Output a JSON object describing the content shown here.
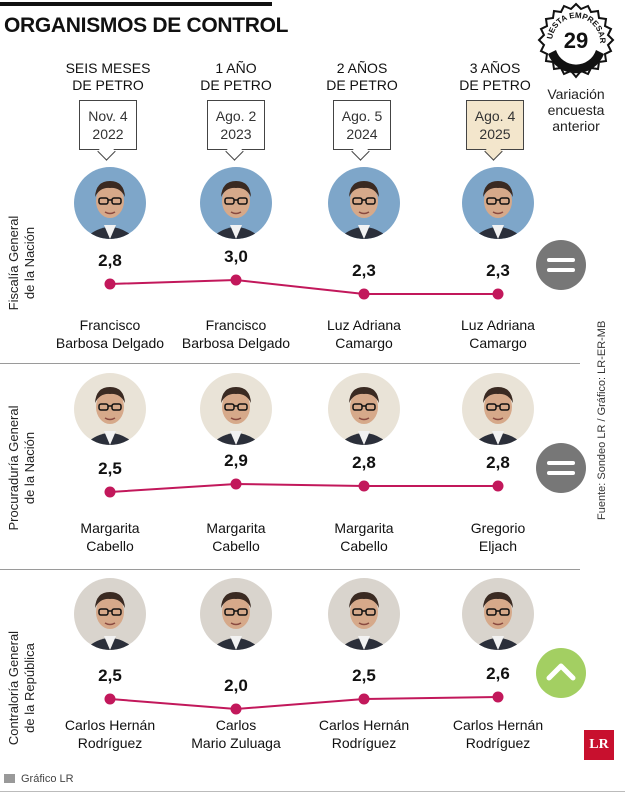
{
  "title": "ORGANISMOS DE CONTROL",
  "badge": {
    "line1": "ENCUESTA EMPRESARIAL",
    "number": "29"
  },
  "variation_label": [
    "Variación",
    "encuesta",
    "anterior"
  ],
  "periods": [
    {
      "line1": "SEIS MESES",
      "line2": "DE PETRO",
      "date1": "Nov. 4",
      "date2": "2022",
      "highlight": false
    },
    {
      "line1": "1 AÑO",
      "line2": "DE PETRO",
      "date1": "Ago. 2",
      "date2": "2023",
      "highlight": false
    },
    {
      "line1": "2 AÑOS",
      "line2": "DE PETRO",
      "date1": "Ago. 5",
      "date2": "2024",
      "highlight": false
    },
    {
      "line1": "3 AÑOS",
      "line2": "DE PETRO",
      "date1": "Ago. 4",
      "date2": "2025",
      "highlight": true
    }
  ],
  "chart_data": [
    {
      "type": "line",
      "label": "Fiscalía General de la Nación",
      "label_lines": [
        "Fiscalía General",
        "de la Nación"
      ],
      "values": [
        2.8,
        3.0,
        2.3,
        2.3
      ],
      "value_labels": [
        "2,8",
        "3,0",
        "2,3",
        "2,3"
      ],
      "names": [
        [
          "Francisco",
          "Barbosa Delgado"
        ],
        [
          "Francisco",
          "Barbosa Delgado"
        ],
        [
          "Luz Adriana",
          "Camargo"
        ],
        [
          "Luz Adriana",
          "Camargo"
        ]
      ],
      "trend": "equal"
    },
    {
      "type": "line",
      "label": "Procuraduría General de la Nación",
      "label_lines": [
        "Procuraduría General",
        "de la Nación"
      ],
      "values": [
        2.5,
        2.9,
        2.8,
        2.8
      ],
      "value_labels": [
        "2,5",
        "2,9",
        "2,8",
        "2,8"
      ],
      "names": [
        [
          "Margarita",
          "Cabello"
        ],
        [
          "Margarita",
          "Cabello"
        ],
        [
          "Margarita",
          "Cabello"
        ],
        [
          "Gregorio",
          "Eljach"
        ]
      ],
      "trend": "equal"
    },
    {
      "type": "line",
      "label": "Contraloría General de la República",
      "label_lines": [
        "Contraloría General",
        "de la República"
      ],
      "values": [
        2.5,
        2.0,
        2.5,
        2.6
      ],
      "value_labels": [
        "2,5",
        "2,0",
        "2,5",
        "2,6"
      ],
      "names": [
        [
          "Carlos Hernán",
          "Rodríguez"
        ],
        [
          "Carlos",
          "Mario Zuluaga"
        ],
        [
          "Carlos Hernán",
          "Rodríguez"
        ],
        [
          "Carlos Hernán",
          "Rodríguez"
        ]
      ],
      "trend": "up"
    }
  ],
  "colors": {
    "line": "#c2185b",
    "equal": "#777777",
    "up": "#a3cf62"
  },
  "source": "Fuente: Sondeo LR / Gráfico: LR-ER-MB",
  "logo": "LR",
  "footer": "Gráfico LR"
}
